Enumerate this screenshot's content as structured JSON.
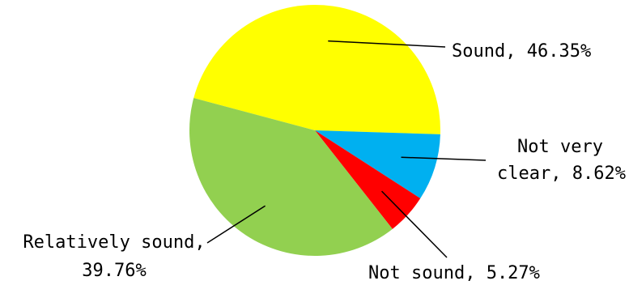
{
  "chart_data": {
    "type": "pie",
    "title": "",
    "slices": [
      {
        "name": "Sound",
        "value": 46.35,
        "label_lines": [
          "Sound, 46.35%"
        ],
        "color": "#FFFF00"
      },
      {
        "name": "Not very clear",
        "value": 8.62,
        "label_lines": [
          "Not very",
          "clear, 8.62%"
        ],
        "color": "#00B0F0"
      },
      {
        "name": "Not sound",
        "value": 5.27,
        "label_lines": [
          "Not sound, 5.27%"
        ],
        "color": "#FF0000"
      },
      {
        "name": "Relatively sound",
        "value": 39.76,
        "label_lines": [
          "Relatively sound,",
          "39.76%"
        ],
        "color": "#92D050"
      }
    ],
    "legend": "none",
    "data_labels": "outside with leader lines"
  }
}
